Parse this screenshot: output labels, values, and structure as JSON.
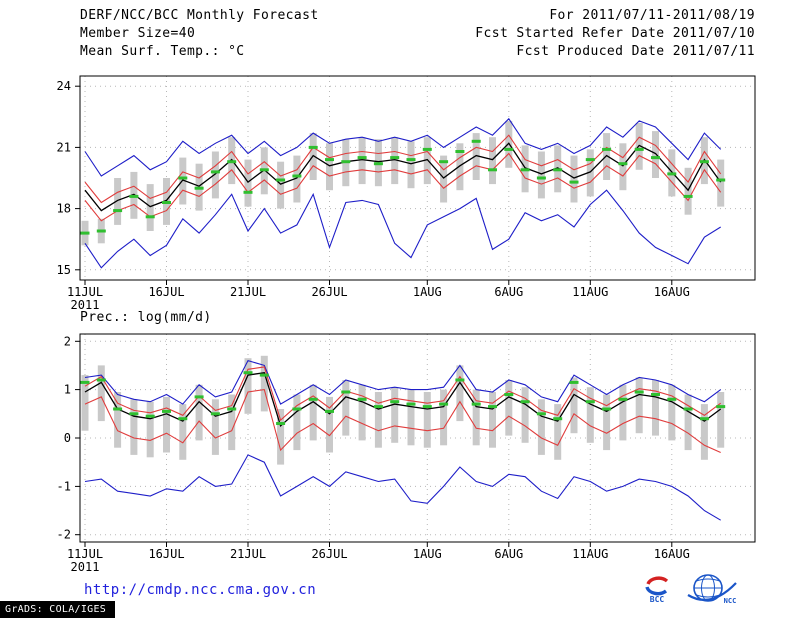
{
  "header": {
    "row1_left": "DERF/NCC/BCC Monthly Forecast",
    "row1_right": "For 2011/07/11-2011/08/19",
    "row2_left": "Member Size=40",
    "row2_right": "Fcst Started Refer Date 2011/07/10",
    "row3_right": "Fcst Produced Date 2011/07/11"
  },
  "footer": {
    "url": "http://cmdp.ncc.cma.gov.cn",
    "grads_credit": "GrADS: COLA/IGES",
    "bcc_label": "BCC",
    "ncc_label": "NCC"
  },
  "colors": {
    "blue": "#1e1ec8",
    "red": "#e03c3c",
    "black": "#000000",
    "green": "#2fbf2f",
    "gray": "#c9c9c9",
    "url_blue": "#2222dd",
    "logo_red": "#d42222",
    "logo_blue": "#1a55c8"
  },
  "chart_data": [
    {
      "type": "line",
      "name": "mean-surface-temperature",
      "title": "Mean Surf. Temp.: °C",
      "ylim": [
        14.5,
        24.5
      ],
      "yticks": [
        15,
        18,
        21,
        24
      ],
      "grid": true,
      "legend": "none",
      "x_year": "2011",
      "x": [
        "11JUL",
        "12JUL",
        "13JUL",
        "14JUL",
        "15JUL",
        "16JUL",
        "17JUL",
        "18JUL",
        "19JUL",
        "20JUL",
        "21JUL",
        "22JUL",
        "23JUL",
        "24JUL",
        "25JUL",
        "26JUL",
        "27JUL",
        "28JUL",
        "29JUL",
        "30JUL",
        "31JUL",
        "1AUG",
        "2AUG",
        "3AUG",
        "4AUG",
        "5AUG",
        "6AUG",
        "7AUG",
        "8AUG",
        "9AUG",
        "10AUG",
        "11AUG",
        "12AUG",
        "13AUG",
        "14AUG",
        "15AUG",
        "16AUG",
        "17AUG",
        "18AUG",
        "19AUG"
      ],
      "x_tick_indices": [
        0,
        5,
        10,
        15,
        21,
        26,
        31,
        36
      ],
      "x_tick_labels": [
        "11JUL",
        "16JUL",
        "21JUL",
        "26JUL",
        "1AUG",
        "6AUG",
        "11AUG",
        "16AUG"
      ],
      "series": [
        {
          "name": "max",
          "color": "blue",
          "values": [
            20.8,
            19.6,
            20.1,
            20.6,
            19.9,
            20.3,
            21.3,
            20.7,
            21.2,
            21.6,
            20.7,
            21.3,
            20.6,
            21.0,
            21.7,
            21.2,
            21.4,
            21.5,
            21.3,
            21.5,
            21.3,
            21.6,
            21.0,
            21.5,
            22.0,
            21.6,
            22.4,
            21.2,
            20.9,
            21.2,
            20.7,
            21.1,
            22.0,
            21.5,
            22.3,
            22.0,
            21.2,
            20.4,
            21.7,
            20.9
          ]
        },
        {
          "name": "upper",
          "color": "red",
          "values": [
            19.3,
            18.3,
            18.8,
            19.1,
            18.5,
            18.8,
            19.8,
            19.5,
            20.1,
            20.8,
            19.7,
            20.3,
            19.6,
            19.9,
            21.0,
            20.5,
            20.7,
            20.8,
            20.7,
            20.8,
            20.6,
            20.8,
            19.9,
            20.5,
            21.0,
            20.8,
            21.6,
            20.4,
            20.1,
            20.4,
            19.9,
            20.2,
            21.0,
            20.5,
            21.5,
            21.1,
            20.2,
            19.3,
            20.8,
            19.7
          ]
        },
        {
          "name": "ensemble-mean",
          "color": "black",
          "values": [
            18.9,
            17.9,
            18.4,
            18.7,
            18.1,
            18.4,
            19.4,
            19.1,
            19.7,
            20.4,
            19.3,
            19.9,
            19.2,
            19.5,
            20.6,
            20.1,
            20.3,
            20.4,
            20.3,
            20.4,
            20.2,
            20.4,
            19.5,
            20.1,
            20.6,
            20.4,
            21.2,
            20.0,
            19.7,
            20.0,
            19.5,
            19.8,
            20.6,
            20.1,
            21.1,
            20.7,
            19.8,
            18.9,
            20.4,
            19.3
          ]
        },
        {
          "name": "lower",
          "color": "red",
          "values": [
            18.4,
            17.4,
            17.9,
            18.2,
            17.6,
            17.9,
            18.9,
            18.6,
            19.2,
            19.9,
            18.8,
            19.4,
            18.7,
            19.0,
            20.1,
            19.6,
            19.8,
            19.9,
            19.8,
            19.9,
            19.7,
            19.9,
            19.0,
            19.6,
            20.1,
            19.9,
            20.7,
            19.5,
            19.2,
            19.5,
            19.0,
            19.3,
            20.1,
            19.6,
            20.6,
            20.2,
            19.3,
            18.4,
            19.9,
            18.8
          ]
        },
        {
          "name": "min",
          "color": "blue",
          "values": [
            16.3,
            15.1,
            15.9,
            16.5,
            15.7,
            16.2,
            17.5,
            16.8,
            17.7,
            18.7,
            16.9,
            18.0,
            16.8,
            17.2,
            18.7,
            16.1,
            18.3,
            18.4,
            18.2,
            16.3,
            15.6,
            17.2,
            17.6,
            18.0,
            18.5,
            16.0,
            16.5,
            17.8,
            17.4,
            17.7,
            17.1,
            18.2,
            18.9,
            17.9,
            16.8,
            16.1,
            15.7,
            15.3,
            16.6,
            17.1
          ]
        }
      ],
      "observations": {
        "name": "observation",
        "color": "green",
        "values": [
          16.8,
          16.9,
          17.9,
          18.6,
          17.6,
          18.3,
          19.5,
          19.0,
          19.8,
          20.3,
          18.8,
          19.9,
          19.4,
          19.6,
          21.0,
          20.4,
          20.3,
          20.5,
          20.2,
          20.5,
          20.4,
          20.9,
          20.3,
          20.8,
          21.3,
          19.9,
          20.9,
          19.9,
          19.5,
          19.9,
          19.3,
          20.4,
          20.9,
          20.2,
          20.9,
          20.5,
          19.7,
          18.6,
          20.3,
          19.4
        ]
      },
      "spread_bars": {
        "color": "gray",
        "top": [
          17.4,
          17.5,
          19.5,
          19.8,
          19.2,
          19.5,
          20.5,
          20.2,
          20.8,
          21.5,
          20.4,
          21.0,
          20.3,
          20.6,
          21.7,
          21.2,
          21.4,
          21.5,
          21.4,
          21.5,
          21.3,
          21.5,
          20.6,
          21.2,
          21.7,
          21.5,
          22.3,
          21.1,
          20.8,
          21.1,
          20.6,
          20.9,
          21.7,
          21.2,
          22.2,
          21.8,
          20.9,
          20.0,
          21.5,
          20.4
        ],
        "bottom": [
          16.2,
          16.3,
          17.2,
          17.5,
          16.9,
          17.2,
          18.2,
          17.9,
          18.5,
          19.2,
          18.1,
          18.7,
          18.0,
          18.3,
          19.4,
          18.9,
          19.1,
          19.2,
          19.1,
          19.2,
          19.0,
          19.2,
          18.3,
          18.9,
          19.4,
          19.2,
          20.0,
          18.8,
          18.5,
          18.8,
          18.3,
          18.6,
          19.4,
          18.9,
          19.9,
          19.5,
          18.6,
          17.7,
          19.2,
          18.1
        ]
      }
    },
    {
      "type": "line",
      "name": "precipitation",
      "title": "Prec.: log(mm/d)",
      "ylim": [
        -2.15,
        2.15
      ],
      "yticks": [
        -2,
        -1,
        0,
        1,
        2
      ],
      "grid": true,
      "legend": "none",
      "x_year": "2011",
      "x": [
        "11JUL",
        "12JUL",
        "13JUL",
        "14JUL",
        "15JUL",
        "16JUL",
        "17JUL",
        "18JUL",
        "19JUL",
        "20JUL",
        "21JUL",
        "22JUL",
        "23JUL",
        "24JUL",
        "25JUL",
        "26JUL",
        "27JUL",
        "28JUL",
        "29JUL",
        "30JUL",
        "31JUL",
        "1AUG",
        "2AUG",
        "3AUG",
        "4AUG",
        "5AUG",
        "6AUG",
        "7AUG",
        "8AUG",
        "9AUG",
        "10AUG",
        "11AUG",
        "12AUG",
        "13AUG",
        "14AUG",
        "15AUG",
        "16AUG",
        "17AUG",
        "18AUG",
        "19AUG"
      ],
      "x_tick_indices": [
        0,
        5,
        10,
        15,
        21,
        26,
        31,
        36
      ],
      "x_tick_labels": [
        "11JUL",
        "16JUL",
        "21JUL",
        "26JUL",
        "1AUG",
        "6AUG",
        "11AUG",
        "16AUG"
      ],
      "series": [
        {
          "name": "max",
          "color": "blue",
          "values": [
            1.25,
            1.3,
            0.9,
            0.8,
            0.75,
            0.9,
            0.7,
            1.1,
            0.85,
            0.95,
            1.6,
            1.5,
            0.7,
            0.9,
            1.1,
            0.9,
            1.2,
            1.1,
            1.0,
            1.05,
            1.0,
            1.0,
            1.05,
            1.5,
            1.0,
            0.95,
            1.2,
            1.1,
            0.85,
            0.75,
            1.3,
            1.1,
            0.9,
            1.1,
            1.25,
            1.2,
            1.1,
            0.9,
            0.75,
            1.0
          ]
        },
        {
          "name": "upper",
          "color": "red",
          "values": [
            1.07,
            1.27,
            0.72,
            0.57,
            0.52,
            0.62,
            0.47,
            0.87,
            0.57,
            0.67,
            1.42,
            1.47,
            0.37,
            0.67,
            0.87,
            0.62,
            0.97,
            0.87,
            0.72,
            0.82,
            0.77,
            0.72,
            0.77,
            1.27,
            0.77,
            0.72,
            0.97,
            0.82,
            0.57,
            0.47,
            1.02,
            0.82,
            0.67,
            0.87,
            1.02,
            0.97,
            0.87,
            0.67,
            0.47,
            0.72
          ]
        },
        {
          "name": "ensemble-mean",
          "color": "black",
          "values": [
            0.95,
            1.15,
            0.6,
            0.45,
            0.4,
            0.5,
            0.35,
            0.75,
            0.45,
            0.55,
            1.3,
            1.35,
            0.25,
            0.55,
            0.75,
            0.5,
            0.85,
            0.75,
            0.6,
            0.7,
            0.65,
            0.6,
            0.65,
            1.15,
            0.65,
            0.6,
            0.85,
            0.7,
            0.45,
            0.35,
            0.9,
            0.7,
            0.55,
            0.75,
            0.9,
            0.85,
            0.75,
            0.55,
            0.35,
            0.6
          ]
        },
        {
          "name": "lower",
          "color": "red",
          "values": [
            0.7,
            0.85,
            0.15,
            0.0,
            -0.05,
            0.1,
            -0.1,
            0.35,
            0.0,
            0.15,
            0.95,
            1.0,
            -0.25,
            0.1,
            0.3,
            0.05,
            0.45,
            0.3,
            0.15,
            0.25,
            0.2,
            0.15,
            0.2,
            0.75,
            0.2,
            0.15,
            0.45,
            0.25,
            0.0,
            -0.15,
            0.5,
            0.25,
            0.1,
            0.3,
            0.45,
            0.4,
            0.3,
            0.1,
            -0.15,
            -0.3
          ]
        },
        {
          "name": "min",
          "color": "blue",
          "values": [
            -0.9,
            -0.85,
            -1.1,
            -1.15,
            -1.2,
            -1.05,
            -1.1,
            -0.8,
            -1.0,
            -0.95,
            -0.35,
            -0.5,
            -1.2,
            -1.0,
            -0.8,
            -1.0,
            -0.7,
            -0.8,
            -0.9,
            -0.85,
            -1.3,
            -1.35,
            -1.0,
            -0.6,
            -0.9,
            -1.0,
            -0.75,
            -0.8,
            -1.1,
            -1.25,
            -0.8,
            -0.9,
            -1.1,
            -1.0,
            -0.85,
            -0.9,
            -1.0,
            -1.2,
            -1.5,
            -1.7
          ]
        }
      ],
      "observations": {
        "name": "observation",
        "color": "green",
        "values": [
          1.15,
          1.2,
          0.6,
          0.5,
          0.45,
          0.55,
          0.4,
          0.85,
          0.5,
          0.6,
          1.35,
          1.3,
          0.3,
          0.6,
          0.8,
          0.55,
          0.95,
          0.8,
          0.65,
          0.75,
          0.7,
          0.65,
          0.7,
          1.2,
          0.7,
          0.65,
          0.9,
          0.75,
          0.5,
          0.4,
          1.15,
          0.75,
          0.6,
          0.8,
          0.95,
          0.9,
          0.8,
          0.6,
          0.4,
          0.65
        ]
      },
      "spread_bars": {
        "color": "gray",
        "top": [
          1.3,
          1.5,
          0.95,
          0.8,
          0.75,
          0.85,
          0.7,
          1.1,
          0.8,
          0.9,
          1.65,
          1.7,
          0.6,
          0.9,
          1.1,
          0.85,
          1.2,
          1.1,
          0.95,
          1.05,
          1.0,
          0.95,
          1.0,
          1.5,
          1.0,
          0.95,
          1.2,
          1.05,
          0.8,
          0.7,
          1.25,
          1.05,
          0.9,
          1.1,
          1.25,
          1.2,
          1.1,
          0.9,
          0.7,
          0.95
        ],
        "bottom": [
          0.15,
          0.35,
          -0.2,
          -0.35,
          -0.4,
          -0.3,
          -0.45,
          -0.05,
          -0.35,
          -0.25,
          0.5,
          0.55,
          -0.55,
          -0.25,
          -0.05,
          -0.3,
          0.05,
          -0.05,
          -0.2,
          -0.1,
          -0.15,
          -0.2,
          -0.15,
          0.35,
          -0.15,
          -0.2,
          0.05,
          -0.1,
          -0.35,
          -0.45,
          0.1,
          -0.1,
          -0.25,
          -0.05,
          0.1,
          0.05,
          -0.05,
          -0.25,
          -0.45,
          -0.2
        ]
      }
    }
  ]
}
